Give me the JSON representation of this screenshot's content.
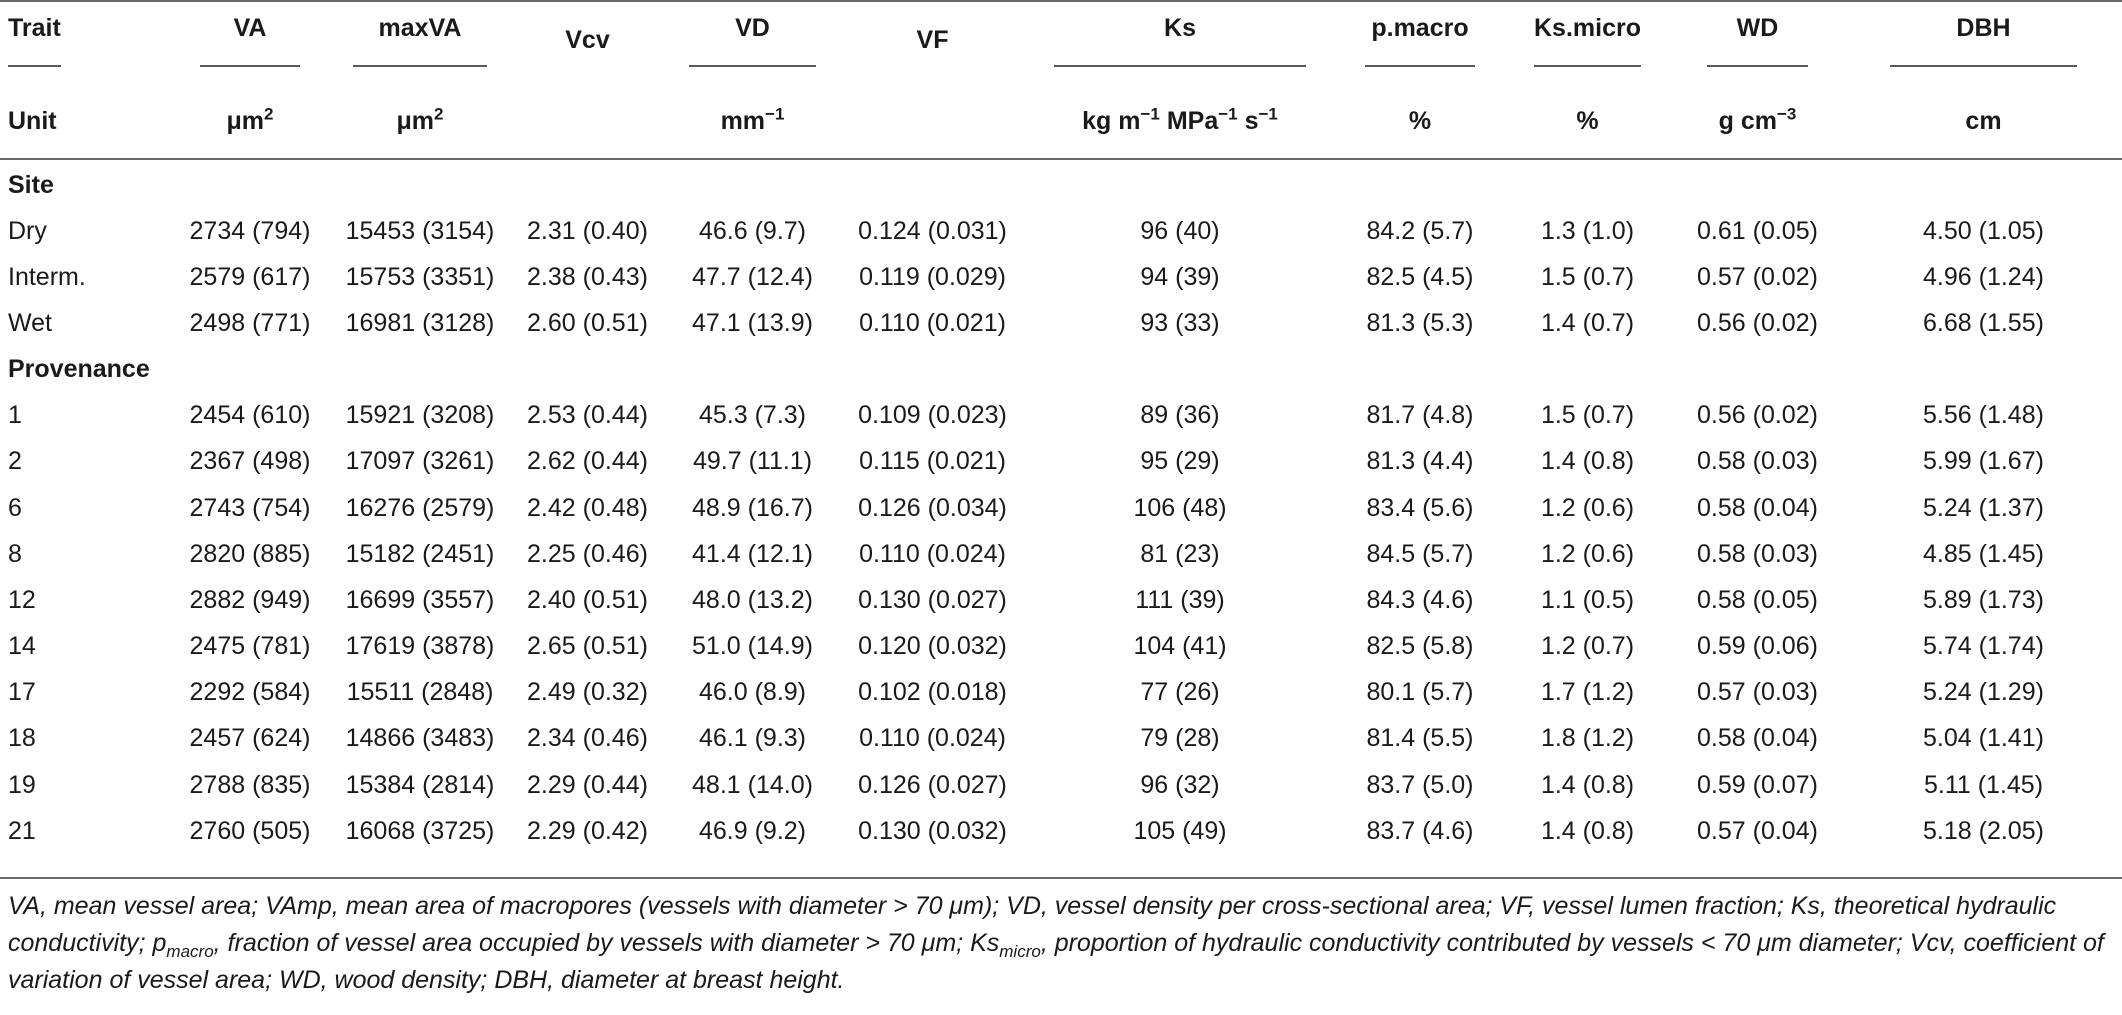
{
  "header": {
    "trait_label": "Trait",
    "unit_label": "Unit",
    "columns": [
      {
        "name": "VA",
        "unit_base": "μm",
        "unit_sup": "2"
      },
      {
        "name": "maxVA",
        "unit_base": "μm",
        "unit_sup": "2"
      },
      {
        "name": "Vcv",
        "unit_base": "",
        "unit_sup": ""
      },
      {
        "name": "VD",
        "unit_base": "mm",
        "unit_sup": "−1"
      },
      {
        "name": "VF",
        "unit_base": "",
        "unit_sup": ""
      },
      {
        "name": "Ks",
        "unit_base": "kg m",
        "unit_sup": "−1",
        "unit_mid": " MPa",
        "unit_sup2": "−1",
        "unit_end": " s",
        "unit_sup3": "−1"
      },
      {
        "name": "p.macro",
        "unit_base": "%",
        "unit_sup": ""
      },
      {
        "name": "Ks.micro",
        "unit_base": "%",
        "unit_sup": ""
      },
      {
        "name": "WD",
        "unit_base": "g cm",
        "unit_sup": "−3"
      },
      {
        "name": "DBH",
        "unit_base": "cm",
        "unit_sup": ""
      }
    ]
  },
  "sections": [
    {
      "title": "Site",
      "rows": [
        {
          "label": "Dry",
          "values": [
            "2734 (794)",
            "15453 (3154)",
            "2.31 (0.40)",
            "46.6 (9.7)",
            "0.124 (0.031)",
            "96 (40)",
            "84.2 (5.7)",
            "1.3 (1.0)",
            "0.61 (0.05)",
            "4.50 (1.05)"
          ]
        },
        {
          "label": "Interm.",
          "values": [
            "2579 (617)",
            "15753 (3351)",
            "2.38 (0.43)",
            "47.7 (12.4)",
            "0.119 (0.029)",
            "94 (39)",
            "82.5 (4.5)",
            "1.5 (0.7)",
            "0.57 (0.02)",
            "4.96 (1.24)"
          ]
        },
        {
          "label": "Wet",
          "values": [
            "2498 (771)",
            "16981 (3128)",
            "2.60 (0.51)",
            "47.1 (13.9)",
            "0.110 (0.021)",
            "93 (33)",
            "81.3 (5.3)",
            "1.4 (0.7)",
            "0.56 (0.02)",
            "6.68 (1.55)"
          ]
        }
      ]
    },
    {
      "title": "Provenance",
      "rows": [
        {
          "label": "1",
          "values": [
            "2454 (610)",
            "15921 (3208)",
            "2.53 (0.44)",
            "45.3 (7.3)",
            "0.109 (0.023)",
            "89 (36)",
            "81.7 (4.8)",
            "1.5 (0.7)",
            "0.56 (0.02)",
            "5.56 (1.48)"
          ]
        },
        {
          "label": "2",
          "values": [
            "2367 (498)",
            "17097 (3261)",
            "2.62 (0.44)",
            "49.7 (11.1)",
            "0.115 (0.021)",
            "95 (29)",
            "81.3 (4.4)",
            "1.4 (0.8)",
            "0.58 (0.03)",
            "5.99 (1.67)"
          ]
        },
        {
          "label": "6",
          "values": [
            "2743 (754)",
            "16276 (2579)",
            "2.42 (0.48)",
            "48.9 (16.7)",
            "0.126 (0.034)",
            "106 (48)",
            "83.4 (5.6)",
            "1.2 (0.6)",
            "0.58 (0.04)",
            "5.24 (1.37)"
          ]
        },
        {
          "label": "8",
          "values": [
            "2820 (885)",
            "15182 (2451)",
            "2.25 (0.46)",
            "41.4 (12.1)",
            "0.110 (0.024)",
            "81 (23)",
            "84.5 (5.7)",
            "1.2 (0.6)",
            "0.58 (0.03)",
            "4.85 (1.45)"
          ]
        },
        {
          "label": "12",
          "values": [
            "2882 (949)",
            "16699 (3557)",
            "2.40 (0.51)",
            "48.0 (13.2)",
            "0.130 (0.027)",
            "111 (39)",
            "84.3 (4.6)",
            "1.1 (0.5)",
            "0.58 (0.05)",
            "5.89 (1.73)"
          ]
        },
        {
          "label": "14",
          "values": [
            "2475 (781)",
            "17619 (3878)",
            "2.65 (0.51)",
            "51.0 (14.9)",
            "0.120 (0.032)",
            "104 (41)",
            "82.5 (5.8)",
            "1.2 (0.7)",
            "0.59 (0.06)",
            "5.74 (1.74)"
          ]
        },
        {
          "label": "17",
          "values": [
            "2292 (584)",
            "15511 (2848)",
            "2.49 (0.32)",
            "46.0 (8.9)",
            "0.102 (0.018)",
            "77 (26)",
            "80.1 (5.7)",
            "1.7 (1.2)",
            "0.57 (0.03)",
            "5.24 (1.29)"
          ]
        },
        {
          "label": "18",
          "values": [
            "2457 (624)",
            "14866 (3483)",
            "2.34 (0.46)",
            "46.1 (9.3)",
            "0.110 (0.024)",
            "79 (28)",
            "81.4 (5.5)",
            "1.8 (1.2)",
            "0.58 (0.04)",
            "5.04 (1.41)"
          ]
        },
        {
          "label": "19",
          "values": [
            "2788 (835)",
            "15384 (2814)",
            "2.29 (0.44)",
            "48.1 (14.0)",
            "0.126 (0.027)",
            "96 (32)",
            "83.7 (5.0)",
            "1.4 (0.8)",
            "0.59 (0.07)",
            "5.11 (1.45)"
          ]
        },
        {
          "label": "21",
          "values": [
            "2760 (505)",
            "16068 (3725)",
            "2.29 (0.42)",
            "46.9 (9.2)",
            "0.130 (0.032)",
            "105 (49)",
            "83.7 (4.6)",
            "1.4 (0.8)",
            "0.57 (0.04)",
            "5.18 (2.05)"
          ]
        }
      ]
    }
  ],
  "footnote": {
    "p1": "VA, mean vessel area; VAmp, mean area of macropores (vessels with diameter > 70 μm); VD, vessel density per cross-sectional area; VF, vessel lumen fraction; Ks, theoretical hydraulic conductivity; p",
    "p1_sub": "macro",
    "p2": ", fraction of vessel area occupied by vessels with diameter > 70 μm; Ks",
    "p2_sub": "micro",
    "p3": ", proportion of hydraulic conductivity contributed by vessels < 70 μm diameter; Vcv, coefficient of variation of vessel area; WD, wood density; DBH, diameter at breast height."
  }
}
